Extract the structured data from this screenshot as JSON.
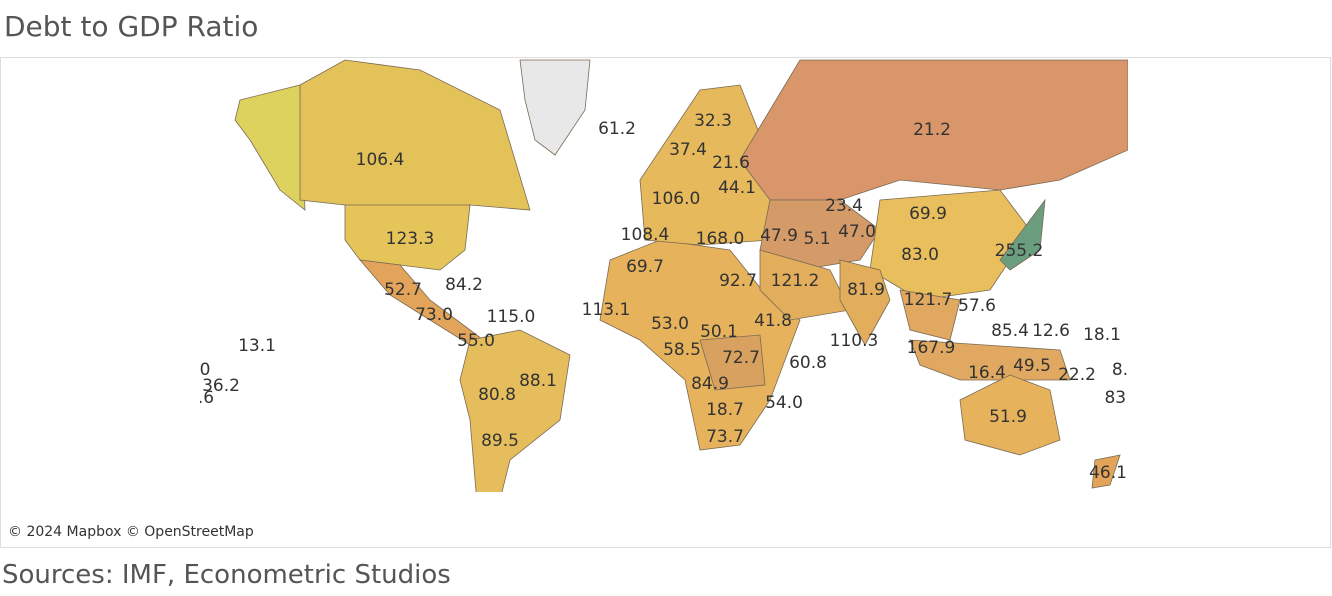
{
  "title": "Debt to GDP Ratio",
  "attribution": "© 2024 Mapbox © OpenStreetMap",
  "source": "Sources: IMF, Econometric Studios",
  "labels": [
    "61.2",
    "32.3",
    "21.2",
    "106.4",
    "37.4",
    "21.6",
    "44.1",
    "106.0",
    "23.4",
    "69.9",
    "108.4",
    "168.0",
    "47.9",
    "5.1",
    "47.0",
    "123.3",
    "255.2",
    "83.0",
    "69.7",
    "92.7",
    "121.2",
    "52.7",
    "84.2",
    "81.9",
    "121.7",
    "57.6",
    "113.1",
    "73.0",
    "115.0",
    "53.0",
    "50.1",
    "41.8",
    "85.4",
    "12.6",
    "18.1",
    "110.3",
    "55.0",
    "13.1",
    "58.5",
    "167.9",
    "72.7",
    "60.8",
    "49.5",
    "0",
    "16.4",
    "22.2",
    "8.",
    "88.1",
    "36.2",
    "84.9",
    ".6",
    "80.8",
    "83.",
    "54.0",
    "18.7",
    "51.9",
    "73.7",
    "89.5",
    "46.1"
  ]
}
